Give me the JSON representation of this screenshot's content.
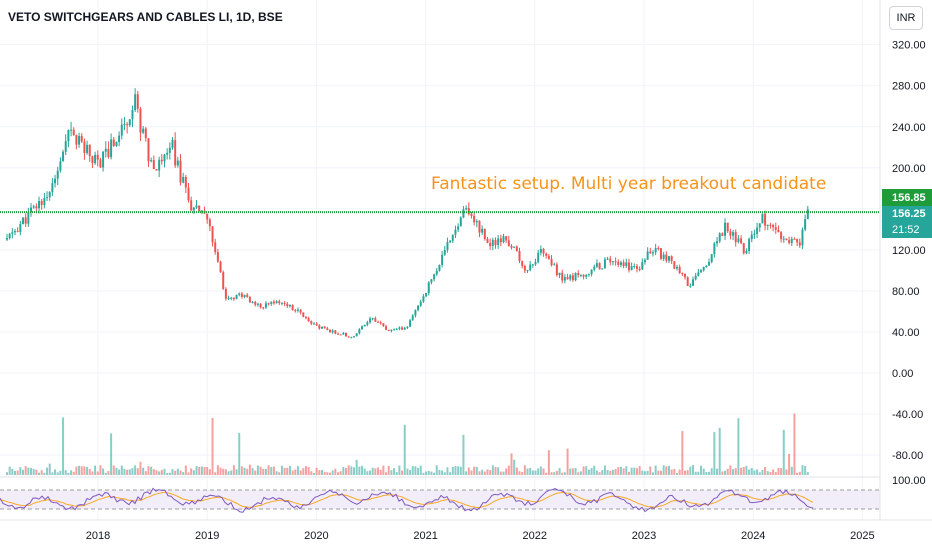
{
  "header": {
    "symbol": "VETO SWITCHGEARS AND CABLES LI, 1D, BSE",
    "currency": "INR"
  },
  "annotation": "Fantastic setup. Multi year breakout candidate",
  "price_tags": {
    "line_price": "156.85",
    "last_price": "156.25",
    "countdown": "21:52"
  },
  "colors": {
    "up": "#26a69a",
    "down": "#ef5350",
    "breakout_line": "#1e9c3a",
    "annotation": "#f7931a",
    "rsi_line": "#7e57c2",
    "rsi_ma": "#f9a825"
  },
  "chart_data": {
    "type": "line",
    "title": "VETO SWITCHGEARS AND CABLES LI, 1D, BSE",
    "x_ticks": [
      "2018",
      "2019",
      "2020",
      "2021",
      "2022",
      "2023",
      "2024",
      "2025"
    ],
    "y_ticks": [
      "320.00",
      "280.00",
      "240.00",
      "200.00",
      "160.00",
      "120.00",
      "80.00",
      "40.00",
      "0.00",
      "-40.00",
      "-80.00"
    ],
    "rsi_tick": "100.00",
    "ylim": [
      -100,
      340
    ],
    "breakout_level": 156.85,
    "series": [
      {
        "x": [
          "2017-03",
          "2017-05",
          "2017-08",
          "2017-10",
          "2017-12",
          "2018-01",
          "2018-03",
          "2018-05",
          "2018-07",
          "2018-09",
          "2018-11",
          "2019-01",
          "2019-03",
          "2019-05",
          "2019-07",
          "2019-09",
          "2019-11",
          "2020-01",
          "2020-03",
          "2020-05",
          "2020-07",
          "2020-09",
          "2020-11",
          "2021-01",
          "2021-03",
          "2021-05",
          "2021-06",
          "2021-08",
          "2021-10",
          "2021-12",
          "2022-02",
          "2022-04",
          "2022-06",
          "2022-08",
          "2022-10",
          "2022-12",
          "2023-02",
          "2023-04",
          "2023-06",
          "2023-08",
          "2023-10",
          "2023-12",
          "2024-02",
          "2024-04",
          "2024-06",
          "2024-07"
        ],
        "values": [
          130,
          150,
          180,
          235,
          215,
          205,
          228,
          265,
          200,
          225,
          165,
          150,
          75,
          75,
          65,
          70,
          60,
          45,
          40,
          35,
          55,
          40,
          45,
          80,
          115,
          158,
          155,
          125,
          130,
          100,
          120,
          90,
          95,
          105,
          110,
          100,
          120,
          110,
          85,
          110,
          145,
          120,
          150,
          130,
          125,
          156
        ]
      }
    ]
  }
}
